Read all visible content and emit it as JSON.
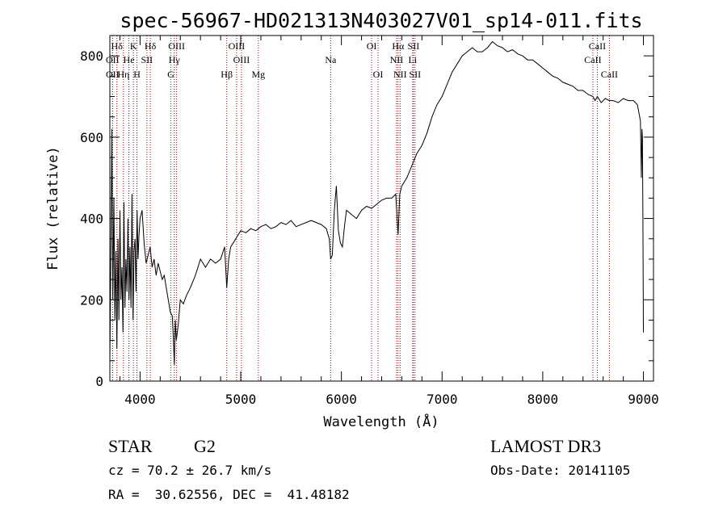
{
  "chart_data": {
    "type": "line",
    "title": "spec-56967-HD021313N403027V01_sp14-011.fits",
    "xlabel": "Wavelength (Å)",
    "ylabel": "Flux (relative)",
    "xlim": [
      3700,
      9100
    ],
    "ylim": [
      0,
      850
    ],
    "x_ticks": [
      4000,
      5000,
      6000,
      7000,
      8000,
      9000
    ],
    "y_ticks": [
      0,
      200,
      400,
      600,
      800
    ],
    "grid": false,
    "series": [
      {
        "line_color": "#000000",
        "x": [
          3700,
          3710,
          3720,
          3730,
          3740,
          3750,
          3760,
          3770,
          3780,
          3790,
          3800,
          3810,
          3820,
          3830,
          3840,
          3850,
          3860,
          3870,
          3880,
          3890,
          3900,
          3910,
          3920,
          3930,
          3940,
          3950,
          3960,
          3970,
          3980,
          3990,
          4000,
          4020,
          4040,
          4060,
          4080,
          4100,
          4120,
          4140,
          4160,
          4180,
          4200,
          4220,
          4240,
          4260,
          4280,
          4300,
          4320,
          4330,
          4340,
          4350,
          4360,
          4380,
          4400,
          4430,
          4460,
          4500,
          4550,
          4600,
          4650,
          4700,
          4750,
          4800,
          4840,
          4861,
          4880,
          4900,
          4950,
          5000,
          5050,
          5100,
          5150,
          5200,
          5250,
          5300,
          5350,
          5400,
          5450,
          5500,
          5550,
          5600,
          5650,
          5700,
          5750,
          5800,
          5850,
          5880,
          5893,
          5910,
          5930,
          5950,
          5970,
          5990,
          6010,
          6030,
          6050,
          6100,
          6150,
          6200,
          6250,
          6300,
          6350,
          6400,
          6450,
          6500,
          6540,
          6563,
          6580,
          6600,
          6650,
          6700,
          6750,
          6800,
          6850,
          6900,
          6950,
          7000,
          7050,
          7100,
          7150,
          7200,
          7250,
          7300,
          7350,
          7400,
          7450,
          7500,
          7550,
          7600,
          7650,
          7700,
          7750,
          7800,
          7850,
          7900,
          7950,
          8000,
          8050,
          8100,
          8150,
          8200,
          8250,
          8300,
          8350,
          8400,
          8450,
          8498,
          8520,
          8542,
          8580,
          8620,
          8662,
          8700,
          8750,
          8800,
          8850,
          8900,
          8940,
          8970,
          8980,
          8985,
          8990,
          8995,
          9000
        ],
        "values": [
          50,
          300,
          620,
          200,
          450,
          150,
          320,
          80,
          350,
          150,
          420,
          200,
          280,
          120,
          440,
          180,
          300,
          220,
          400,
          200,
          330,
          180,
          460,
          150,
          320,
          350,
          220,
          420,
          300,
          360,
          400,
          420,
          340,
          290,
          310,
          330,
          280,
          300,
          260,
          290,
          270,
          250,
          260,
          230,
          200,
          170,
          160,
          110,
          40,
          150,
          100,
          140,
          200,
          190,
          210,
          230,
          260,
          300,
          280,
          300,
          290,
          300,
          330,
          230,
          300,
          330,
          350,
          370,
          365,
          375,
          370,
          380,
          385,
          375,
          380,
          390,
          385,
          395,
          380,
          385,
          390,
          395,
          390,
          385,
          375,
          350,
          300,
          310,
          420,
          480,
          370,
          340,
          330,
          380,
          420,
          410,
          400,
          420,
          430,
          425,
          435,
          445,
          450,
          450,
          460,
          360,
          460,
          480,
          500,
          530,
          560,
          580,
          610,
          650,
          680,
          700,
          730,
          760,
          780,
          800,
          810,
          820,
          810,
          810,
          820,
          835,
          825,
          820,
          810,
          815,
          805,
          800,
          790,
          790,
          780,
          770,
          760,
          750,
          745,
          735,
          730,
          725,
          715,
          715,
          705,
          700,
          690,
          700,
          685,
          695,
          690,
          690,
          685,
          695,
          690,
          690,
          680,
          640,
          500,
          620,
          600,
          400,
          120
        ]
      }
    ],
    "line_markers": [
      {
        "label": "Hδ",
        "x": 3770,
        "row": 0
      },
      {
        "label": "K",
        "x": 3934,
        "row": 0
      },
      {
        "label": "Hδ",
        "x": 4102,
        "row": 0
      },
      {
        "label": "OIII",
        "x": 4363,
        "row": 0
      },
      {
        "label": "OIII",
        "x": 4959,
        "row": 0
      },
      {
        "label": "OI",
        "x": 6300,
        "row": 0
      },
      {
        "label": "Hα",
        "x": 6563,
        "row": 0
      },
      {
        "label": "SII",
        "x": 6716,
        "row": 0
      },
      {
        "label": "CaII",
        "x": 8542,
        "row": 0
      },
      {
        "label": "OII",
        "x": 3727,
        "row": 1
      },
      {
        "label": "He",
        "x": 3889,
        "row": 1
      },
      {
        "label": "SII",
        "x": 4068,
        "row": 1
      },
      {
        "label": "Hγ",
        "x": 4340,
        "row": 1
      },
      {
        "label": "OIII",
        "x": 5007,
        "row": 1
      },
      {
        "label": "Na",
        "x": 5893,
        "row": 1
      },
      {
        "label": "NII",
        "x": 6548,
        "row": 1
      },
      {
        "label": "Li",
        "x": 6708,
        "row": 1
      },
      {
        "label": "CaII",
        "x": 8498,
        "row": 1
      },
      {
        "label": "OII",
        "x": 3727,
        "row": 2
      },
      {
        "label": "Hη",
        "x": 3835,
        "row": 2
      },
      {
        "label": "H",
        "x": 3969,
        "row": 2
      },
      {
        "label": "G",
        "x": 4305,
        "row": 2
      },
      {
        "label": "Hβ",
        "x": 4861,
        "row": 2
      },
      {
        "label": "Mg",
        "x": 5175,
        "row": 2
      },
      {
        "label": "OI",
        "x": 6364,
        "row": 2
      },
      {
        "label": "NII",
        "x": 6583,
        "row": 2
      },
      {
        "label": "SII",
        "x": 6731,
        "row": 2
      },
      {
        "label": "CaII",
        "x": 8662,
        "row": 2
      }
    ],
    "marker_line_color": "#a00000"
  },
  "info": {
    "object_class": "STAR",
    "subclass": "G2",
    "survey": "LAMOST DR3",
    "redshift_line": "cz = 70.2 ± 26.7 km/s",
    "obs_date_line": "Obs-Date: 20141105",
    "coords_line": "RA =  30.62556, DEC =  41.48182"
  }
}
